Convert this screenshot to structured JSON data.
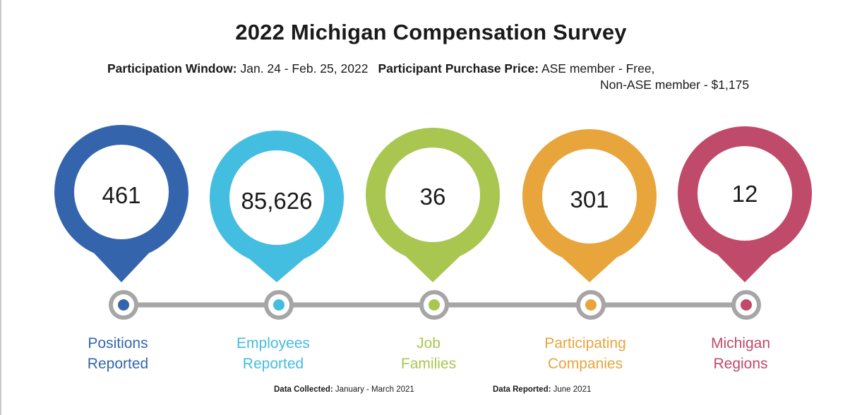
{
  "title": "2022 Michigan Compensation Survey",
  "info": {
    "window_label": "Participation Window:",
    "window_value": "Jan. 24 - Feb. 25, 2022",
    "price_label": "Participant Purchase Price:",
    "price_line1": "ASE member - Free,",
    "price_line2": "Non-ASE member - $1,175"
  },
  "stats": [
    {
      "value": "461",
      "label_line1": "Positions",
      "label_line2": "Reported",
      "color": "#3465ac"
    },
    {
      "value": "85,626",
      "label_line1": "Employees",
      "label_line2": "Reported",
      "color": "#43bde0"
    },
    {
      "value": "36",
      "label_line1": "Job",
      "label_line2": "Families",
      "color": "#a9c651"
    },
    {
      "value": "301",
      "label_line1": "Participating",
      "label_line2": "Companies",
      "color": "#e8a53c"
    },
    {
      "value": "12",
      "label_line1": "Michigan",
      "label_line2": "Regions",
      "color": "#bf4a6a"
    }
  ],
  "timeline_color": "#a6a6a6",
  "footer": {
    "collected_label": "Data Collected:",
    "collected_value": "January - March 2021",
    "reported_label": "Data Reported:",
    "reported_value": "June 2021"
  }
}
